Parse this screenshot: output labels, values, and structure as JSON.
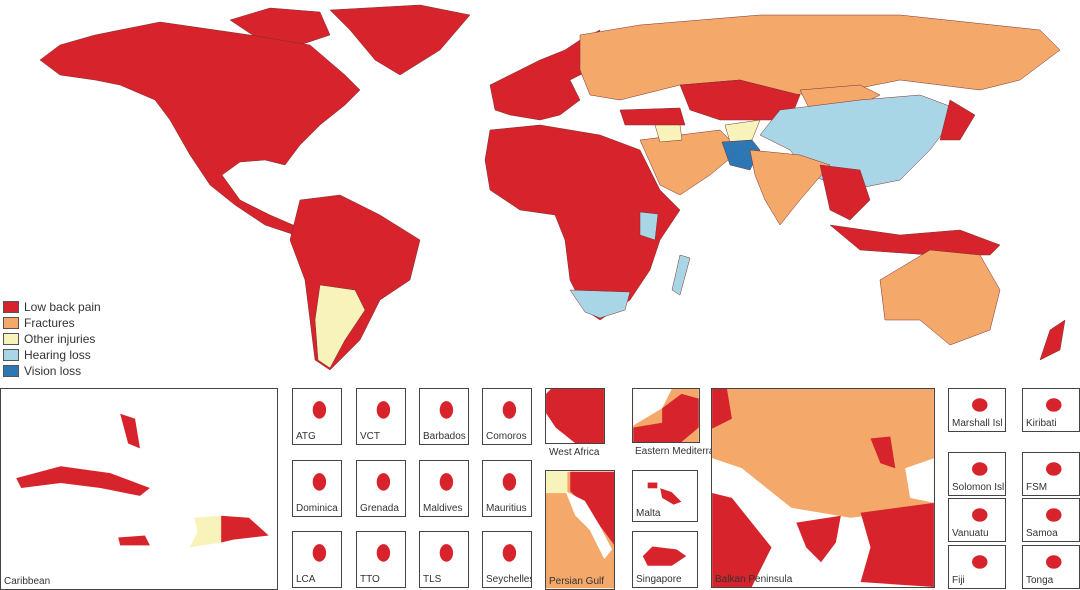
{
  "legend": [
    {
      "label": "Low back pain",
      "color": "#d7232b"
    },
    {
      "label": "Fractures",
      "color": "#f4a86a"
    },
    {
      "label": "Other injuries",
      "color": "#f7f3bb"
    },
    {
      "label": "Hearing loss",
      "color": "#a9d6e6"
    },
    {
      "label": "Vision loss",
      "color": "#2d78b4"
    }
  ],
  "insets": {
    "caribbean": "Caribbean",
    "atg": "ATG",
    "vct": "VCT",
    "barbados": "Barbados",
    "comoros": "Comoros",
    "dominica": "Dominica",
    "grenada": "Grenada",
    "maldives": "Maldives",
    "mauritius": "Mauritius",
    "lca": "LCA",
    "tto": "TTO",
    "tls": "TLS",
    "seychelles": "Seychelles",
    "west_africa": "West Africa",
    "eastern_med": "Eastern Mediterranean",
    "persian_gulf": "Persian Gulf",
    "malta": "Malta",
    "singapore": "Singapore",
    "balkan": "Balkan Peninsula",
    "marshall": "Marshall Isl",
    "kiribati": "Kiribati",
    "solomon": "Solomon Isl",
    "fsm": "FSM",
    "vanuatu": "Vanuatu",
    "samoa": "Samoa",
    "fiji": "Fiji",
    "tonga": "Tonga"
  }
}
